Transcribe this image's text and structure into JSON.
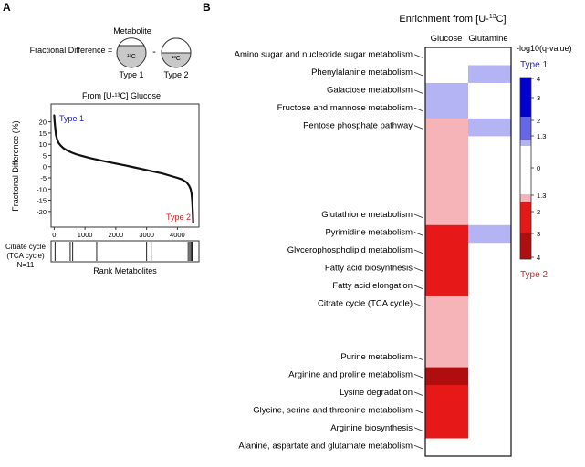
{
  "panels": {
    "a": "A",
    "b": "B"
  },
  "schematic": {
    "metabolite": "Metabolite",
    "lhs": "Fractional Difference =",
    "minus": "-",
    "c13_left": "¹³C",
    "c13_right": "¹³C",
    "type1": "Type 1",
    "type2": "Type 2",
    "colors": {
      "circle_fill": "#c8c8c8",
      "stroke": "#333333"
    }
  },
  "chart_data": [
    {
      "type": "scatter",
      "title": "From [U-¹³C] Glucose",
      "xlabel": "",
      "ylabel": "Fractional Difference (%)",
      "xlim": [
        -100,
        4700
      ],
      "ylim": [
        -27,
        28
      ],
      "xticks": [
        "0",
        "1000",
        "2000",
        "3000",
        "4000"
      ],
      "xtick_values": [
        0,
        1000,
        2000,
        3000,
        4000
      ],
      "yticks": [
        "20",
        "15",
        "10",
        "5",
        "0",
        "-5",
        "-10",
        "-15",
        "-20"
      ],
      "ytick_values": [
        20,
        15,
        10,
        5,
        0,
        -5,
        -10,
        -15,
        -20
      ],
      "annotations": {
        "top": "Type 1",
        "bottom": "Type 2"
      },
      "series": [
        {
          "x": [
            0,
            15,
            35,
            60,
            100,
            150,
            220,
            300,
            400,
            550,
            700,
            900,
            1150,
            1400,
            1700,
            2000,
            2300,
            2600,
            2900,
            3200,
            3500,
            3800,
            4000,
            4150,
            4300,
            4380,
            4430,
            4460,
            4480,
            4495,
            4505,
            4512
          ],
          "y": [
            23,
            20,
            17,
            14,
            12,
            10.5,
            9.3,
            8.3,
            7.4,
            6.4,
            5.6,
            4.8,
            3.9,
            3.1,
            2.2,
            1.4,
            0.6,
            -0.3,
            -1.2,
            -2.1,
            -3.0,
            -4.2,
            -5.0,
            -5.7,
            -7.0,
            -8.5,
            -10,
            -12,
            -15,
            -19,
            -22,
            -25
          ]
        }
      ],
      "colors": {
        "points": "#111111",
        "type1": "#1a1acc",
        "type2": "#dd2222"
      }
    },
    {
      "type": "bar",
      "title": "",
      "ylabel": "Citrate cycle (TCA cycle)",
      "n_label": "N=11",
      "label_lines": [
        "Citrate cycle",
        "(TCA cycle)",
        "N=11"
      ],
      "xlabel": "Rank Metabolites",
      "xlim": [
        -100,
        4700
      ],
      "x": [
        30,
        520,
        600,
        1380,
        3000,
        3150,
        4350,
        4400,
        4440,
        4470,
        4490
      ]
    },
    {
      "type": "heatmap",
      "title_prefix": "Enrichment from [U-",
      "title_sup": "13",
      "title_suffix": "C]",
      "columns": [
        "Glucose",
        "Glutamine"
      ],
      "rows": [
        {
          "label": "Amino sugar and nucleotide sugar metabolism",
          "glucose": 0,
          "glutamine": 0
        },
        {
          "label": "Phenylalanine metabolism",
          "glucose": 0,
          "glutamine": 1.7
        },
        {
          "label": "Galactose metabolism",
          "glucose": 1.7,
          "glutamine": 0
        },
        {
          "label": "Fructose and mannose metabolism",
          "glucose": 1.7,
          "glutamine": 0
        },
        {
          "label": "Pentose phosphate pathway",
          "glucose": -1.6,
          "glutamine": 1.7
        },
        {
          "label": "",
          "glucose": -1.6,
          "glutamine": 0
        },
        {
          "label": "",
          "glucose": -1.6,
          "glutamine": 0
        },
        {
          "label": "",
          "glucose": -1.6,
          "glutamine": 0
        },
        {
          "label": "",
          "glucose": -1.6,
          "glutamine": 0
        },
        {
          "label": "Glutathione metabolism",
          "glucose": -1.6,
          "glutamine": 0
        },
        {
          "label": "Pyrimidine metabolism",
          "glucose": -3.0,
          "glutamine": 1.7
        },
        {
          "label": "Glycerophospholipid metabolism",
          "glucose": -3.0,
          "glutamine": 0
        },
        {
          "label": "Fatty acid biosynthesis",
          "glucose": -3.0,
          "glutamine": 0
        },
        {
          "label": "Fatty acid elongation",
          "glucose": -3.0,
          "glutamine": 0
        },
        {
          "label": "Citrate cycle (TCA cycle)",
          "glucose": -1.6,
          "glutamine": 0
        },
        {
          "label": "",
          "glucose": -1.6,
          "glutamine": 0
        },
        {
          "label": "",
          "glucose": -1.6,
          "glutamine": 0
        },
        {
          "label": "Purine metabolism",
          "glucose": -1.6,
          "glutamine": 0
        },
        {
          "label": "Arginine and proline metabolism",
          "glucose": -3.6,
          "glutamine": 0
        },
        {
          "label": "Lysine degradation",
          "glucose": -3.0,
          "glutamine": 0
        },
        {
          "label": "Glycine, serine and threonine metabolism",
          "glucose": -3.0,
          "glutamine": 0
        },
        {
          "label": "Arginine biosynthesis",
          "glucose": -3.0,
          "glutamine": 0
        },
        {
          "label": "Alanine, aspartate and glutamate metabolism",
          "glucose": 0,
          "glutamine": 0
        }
      ],
      "value_meaning": "positive = Type 1 (blue), negative = Type 2 (red); magnitude = -log10(q-value)",
      "colors": {
        "white": "#ffffff",
        "light_blue": "#b4b4f4",
        "light_red": "#f6b3b8",
        "red": "#e61818",
        "dark_red": "#b00e0e"
      }
    }
  ],
  "legend": {
    "title": "-log10(q-value)",
    "type1": "Type 1",
    "type2": "Type 2",
    "ticks": [
      "4",
      "3",
      "2",
      "1.3",
      "0",
      "1.3",
      "2",
      "3",
      "4"
    ],
    "colors": {
      "type1": "#1a1acc",
      "type2": "#dd2222"
    }
  }
}
